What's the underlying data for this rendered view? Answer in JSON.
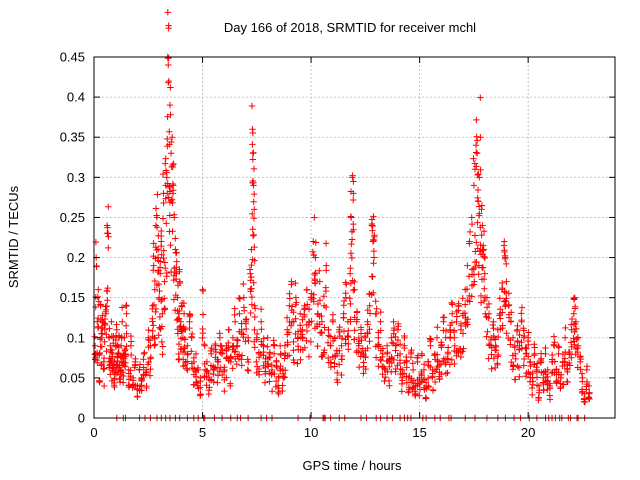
{
  "chart_data": {
    "type": "scatter",
    "title": "Day 166 of 2018, SRMTID for receiver mchl",
    "xlabel": "GPS time / hours",
    "ylabel": "SRMTID / TECUs",
    "xlim": [
      0,
      24
    ],
    "ylim": [
      0,
      0.45
    ],
    "x_ticks": [
      0,
      5,
      10,
      15,
      20
    ],
    "x_tick_labels": [
      "0",
      "5",
      "10",
      "15",
      "20"
    ],
    "y_ticks": [
      0,
      0.05,
      0.1,
      0.15,
      0.2,
      0.25,
      0.3,
      0.35,
      0.4,
      0.45
    ],
    "y_tick_labels": [
      "0",
      "0.05",
      "0.1",
      "0.15",
      "0.2",
      "0.25",
      "0.3",
      "0.35",
      "0.4",
      "0.45"
    ],
    "grid": true,
    "marker": "+",
    "color": "#ff0000",
    "series": [
      {
        "name": "SRMTID",
        "points": [
          [
            0.05,
            0.09
          ],
          [
            0.1,
            0.2
          ],
          [
            0.15,
            0.12
          ],
          [
            0.2,
            0.16
          ],
          [
            0.25,
            0.08
          ],
          [
            0.3,
            0.14
          ],
          [
            0.35,
            0.1
          ],
          [
            0.4,
            0.12
          ],
          [
            0.45,
            0.07
          ],
          [
            0.5,
            0.11
          ],
          [
            0.55,
            0.13
          ],
          [
            0.6,
            0.24
          ],
          [
            0.65,
            0.23
          ],
          [
            0.7,
            0.1
          ],
          [
            0.75,
            0.09
          ],
          [
            0.8,
            0.12
          ],
          [
            0.85,
            0.08
          ],
          [
            0.9,
            0.1
          ],
          [
            0.95,
            0.07
          ],
          [
            1.0,
            0.09
          ],
          [
            1.05,
            0.11
          ],
          [
            1.1,
            0.08
          ],
          [
            1.15,
            0.1
          ],
          [
            1.2,
            0.06
          ],
          [
            1.25,
            0.09
          ],
          [
            1.3,
            0.12
          ],
          [
            1.35,
            0.07
          ],
          [
            1.4,
            0.1
          ],
          [
            1.45,
            0.08
          ],
          [
            1.5,
            0.13
          ],
          [
            1.6,
            0.06
          ],
          [
            1.7,
            0.09
          ],
          [
            1.8,
            0.05
          ],
          [
            1.9,
            0.07
          ],
          [
            2.0,
            0.04
          ],
          [
            2.1,
            0.06
          ],
          [
            2.2,
            0.05
          ],
          [
            2.3,
            0.08
          ],
          [
            2.4,
            0.06
          ],
          [
            2.5,
            0.1
          ],
          [
            2.6,
            0.09
          ],
          [
            2.7,
            0.14
          ],
          [
            2.75,
            0.19
          ],
          [
            2.8,
            0.16
          ],
          [
            2.85,
            0.24
          ],
          [
            2.9,
            0.25
          ],
          [
            2.95,
            0.2
          ],
          [
            3.0,
            0.15
          ],
          [
            3.05,
            0.18
          ],
          [
            3.1,
            0.22
          ],
          [
            3.15,
            0.13
          ],
          [
            3.2,
            0.28
          ],
          [
            3.25,
            0.17
          ],
          [
            3.3,
            0.29
          ],
          [
            3.35,
            0.3
          ],
          [
            3.4,
            0.45
          ],
          [
            3.42,
            0.44
          ],
          [
            3.45,
            0.42
          ],
          [
            3.5,
            0.39
          ],
          [
            3.55,
            0.33
          ],
          [
            3.6,
            0.35
          ],
          [
            3.65,
            0.29
          ],
          [
            3.7,
            0.25
          ],
          [
            3.75,
            0.21
          ],
          [
            3.8,
            0.18
          ],
          [
            3.85,
            0.15
          ],
          [
            3.9,
            0.13
          ],
          [
            3.95,
            0.17
          ],
          [
            4.0,
            0.12
          ],
          [
            4.05,
            0.14
          ],
          [
            4.1,
            0.1
          ],
          [
            4.15,
            0.13
          ],
          [
            4.2,
            0.11
          ],
          [
            4.3,
            0.09
          ],
          [
            4.4,
            0.12
          ],
          [
            4.5,
            0.1
          ],
          [
            4.6,
            0.07
          ],
          [
            4.7,
            0.08
          ],
          [
            4.8,
            0.06
          ],
          [
            4.9,
            0.05
          ],
          [
            5.0,
            0.16
          ],
          [
            5.1,
            0.09
          ],
          [
            5.2,
            0.07
          ],
          [
            5.3,
            0.05
          ],
          [
            5.4,
            0.08
          ],
          [
            5.5,
            0.06
          ],
          [
            5.6,
            0.09
          ],
          [
            5.7,
            0.07
          ],
          [
            5.8,
            0.1
          ],
          [
            5.9,
            0.08
          ],
          [
            6.0,
            0.06
          ],
          [
            6.1,
            0.09
          ],
          [
            6.2,
            0.11
          ],
          [
            6.3,
            0.07
          ],
          [
            6.4,
            0.1
          ],
          [
            6.5,
            0.12
          ],
          [
            6.6,
            0.09
          ],
          [
            6.7,
            0.13
          ],
          [
            6.8,
            0.11
          ],
          [
            6.9,
            0.15
          ],
          [
            7.0,
            0.12
          ],
          [
            7.1,
            0.1
          ],
          [
            7.2,
            0.18
          ],
          [
            7.25,
            0.21
          ],
          [
            7.3,
            0.36
          ],
          [
            7.32,
            0.33
          ],
          [
            7.35,
            0.29
          ],
          [
            7.38,
            0.26
          ],
          [
            7.4,
            0.14
          ],
          [
            7.5,
            0.1
          ],
          [
            7.6,
            0.08
          ],
          [
            7.7,
            0.12
          ],
          [
            7.8,
            0.09
          ],
          [
            7.9,
            0.07
          ],
          [
            8.0,
            0.1
          ],
          [
            8.1,
            0.08
          ],
          [
            8.2,
            0.06
          ],
          [
            8.3,
            0.09
          ],
          [
            8.4,
            0.07
          ],
          [
            8.5,
            0.05
          ],
          [
            8.6,
            0.08
          ],
          [
            8.7,
            0.06
          ],
          [
            8.8,
            0.09
          ],
          [
            8.9,
            0.11
          ],
          [
            9.0,
            0.14
          ],
          [
            9.1,
            0.17
          ],
          [
            9.2,
            0.12
          ],
          [
            9.3,
            0.15
          ],
          [
            9.4,
            0.1
          ],
          [
            9.5,
            0.13
          ],
          [
            9.6,
            0.11
          ],
          [
            9.7,
            0.14
          ],
          [
            9.8,
            0.16
          ],
          [
            9.9,
            0.12
          ],
          [
            10.0,
            0.15
          ],
          [
            10.1,
            0.22
          ],
          [
            10.15,
            0.25
          ],
          [
            10.2,
            0.2
          ],
          [
            10.3,
            0.13
          ],
          [
            10.4,
            0.17
          ],
          [
            10.5,
            0.12
          ],
          [
            10.6,
            0.14
          ],
          [
            10.7,
            0.19
          ],
          [
            10.8,
            0.11
          ],
          [
            10.9,
            0.09
          ],
          [
            11.0,
            0.12
          ],
          [
            11.1,
            0.1
          ],
          [
            11.2,
            0.08
          ],
          [
            11.3,
            0.11
          ],
          [
            11.4,
            0.09
          ],
          [
            11.5,
            0.13
          ],
          [
            11.6,
            0.15
          ],
          [
            11.7,
            0.12
          ],
          [
            11.8,
            0.18
          ],
          [
            11.85,
            0.25
          ],
          [
            11.9,
            0.3
          ],
          [
            11.95,
            0.28
          ],
          [
            12.0,
            0.16
          ],
          [
            12.1,
            0.12
          ],
          [
            12.2,
            0.09
          ],
          [
            12.3,
            0.11
          ],
          [
            12.4,
            0.08
          ],
          [
            12.5,
            0.1
          ],
          [
            12.6,
            0.12
          ],
          [
            12.7,
            0.14
          ],
          [
            12.8,
            0.24
          ],
          [
            12.85,
            0.22
          ],
          [
            12.9,
            0.2
          ],
          [
            13.0,
            0.13
          ],
          [
            13.1,
            0.1
          ],
          [
            13.2,
            0.12
          ],
          [
            13.3,
            0.08
          ],
          [
            13.4,
            0.06
          ],
          [
            13.5,
            0.09
          ],
          [
            13.6,
            0.07
          ],
          [
            13.7,
            0.1
          ],
          [
            13.8,
            0.12
          ],
          [
            13.9,
            0.09
          ],
          [
            14.0,
            0.11
          ],
          [
            14.1,
            0.08
          ],
          [
            14.2,
            0.06
          ],
          [
            14.3,
            0.09
          ],
          [
            14.4,
            0.07
          ],
          [
            14.5,
            0.05
          ],
          [
            14.6,
            0.08
          ],
          [
            14.7,
            0.06
          ],
          [
            14.8,
            0.04
          ],
          [
            14.9,
            0.07
          ],
          [
            15.0,
            0.05
          ],
          [
            15.1,
            0.08
          ],
          [
            15.2,
            0.06
          ],
          [
            15.3,
            0.04
          ],
          [
            15.4,
            0.07
          ],
          [
            15.5,
            0.09
          ],
          [
            15.6,
            0.06
          ],
          [
            15.7,
            0.08
          ],
          [
            15.8,
            0.1
          ],
          [
            15.9,
            0.07
          ],
          [
            16.0,
            0.09
          ],
          [
            16.1,
            0.12
          ],
          [
            16.2,
            0.1
          ],
          [
            16.3,
            0.08
          ],
          [
            16.4,
            0.11
          ],
          [
            16.5,
            0.13
          ],
          [
            16.6,
            0.1
          ],
          [
            16.7,
            0.12
          ],
          [
            16.8,
            0.14
          ],
          [
            16.9,
            0.11
          ],
          [
            17.0,
            0.13
          ],
          [
            17.1,
            0.16
          ],
          [
            17.2,
            0.19
          ],
          [
            17.3,
            0.22
          ],
          [
            17.4,
            0.25
          ],
          [
            17.5,
            0.29
          ],
          [
            17.55,
            0.31
          ],
          [
            17.6,
            0.34
          ],
          [
            17.65,
            0.33
          ],
          [
            17.7,
            0.27
          ],
          [
            17.75,
            0.3
          ],
          [
            17.8,
            0.35
          ],
          [
            17.85,
            0.26
          ],
          [
            17.9,
            0.24
          ],
          [
            17.95,
            0.21
          ],
          [
            18.0,
            0.18
          ],
          [
            18.1,
            0.15
          ],
          [
            18.2,
            0.13
          ],
          [
            18.3,
            0.1
          ],
          [
            18.4,
            0.12
          ],
          [
            18.5,
            0.09
          ],
          [
            18.6,
            0.11
          ],
          [
            18.7,
            0.13
          ],
          [
            18.8,
            0.16
          ],
          [
            18.9,
            0.22
          ],
          [
            18.95,
            0.2
          ],
          [
            19.0,
            0.17
          ],
          [
            19.1,
            0.14
          ],
          [
            19.2,
            0.12
          ],
          [
            19.3,
            0.1
          ],
          [
            19.4,
            0.08
          ],
          [
            19.5,
            0.11
          ],
          [
            19.6,
            0.09
          ],
          [
            19.7,
            0.12
          ],
          [
            19.8,
            0.1
          ],
          [
            19.9,
            0.08
          ],
          [
            20.0,
            0.1
          ],
          [
            20.1,
            0.07
          ],
          [
            20.2,
            0.05
          ],
          [
            20.3,
            0.08
          ],
          [
            20.4,
            0.06
          ],
          [
            20.5,
            0.04
          ],
          [
            20.6,
            0.07
          ],
          [
            20.7,
            0.05
          ],
          [
            20.8,
            0.08
          ],
          [
            20.9,
            0.06
          ],
          [
            21.0,
            0.04
          ],
          [
            21.1,
            0.07
          ],
          [
            21.2,
            0.09
          ],
          [
            21.3,
            0.06
          ],
          [
            21.4,
            0.08
          ],
          [
            21.5,
            0.05
          ],
          [
            21.6,
            0.07
          ],
          [
            21.7,
            0.1
          ],
          [
            21.8,
            0.06
          ],
          [
            21.9,
            0.08
          ],
          [
            22.0,
            0.11
          ],
          [
            22.1,
            0.13
          ],
          [
            22.15,
            0.15
          ],
          [
            22.2,
            0.12
          ],
          [
            22.3,
            0.09
          ],
          [
            22.4,
            0.07
          ],
          [
            22.5,
            0.05
          ],
          [
            22.6,
            0.03
          ],
          [
            22.7,
            0.06
          ],
          [
            22.8,
            0.04
          ]
        ]
      }
    ],
    "zero_points_x": [
      1.05,
      1.35,
      1.45,
      2.1,
      2.35,
      2.6,
      2.9,
      3.1,
      3.3,
      3.5,
      3.75,
      3.95,
      4.3,
      4.6,
      4.8,
      5.05,
      5.1,
      5.55,
      5.9,
      6.3,
      6.6,
      6.75,
      7.1,
      7.7,
      7.95,
      8.2,
      9.4,
      9.95,
      10.55,
      10.6,
      10.65,
      10.9,
      11.3,
      11.55,
      12.3,
      12.55,
      13.0,
      13.2,
      13.5,
      13.75,
      14.1,
      14.3,
      14.45,
      14.6,
      15.15,
      15.3,
      15.7,
      15.95,
      16.35,
      16.45,
      17.1,
      17.55,
      18.1,
      18.6,
      18.95,
      19.35,
      19.65,
      20.05,
      20.4,
      20.8,
      20.95,
      21.1,
      21.25,
      21.45,
      21.55,
      21.85,
      21.95,
      22.25,
      22.3,
      22.6
    ]
  }
}
